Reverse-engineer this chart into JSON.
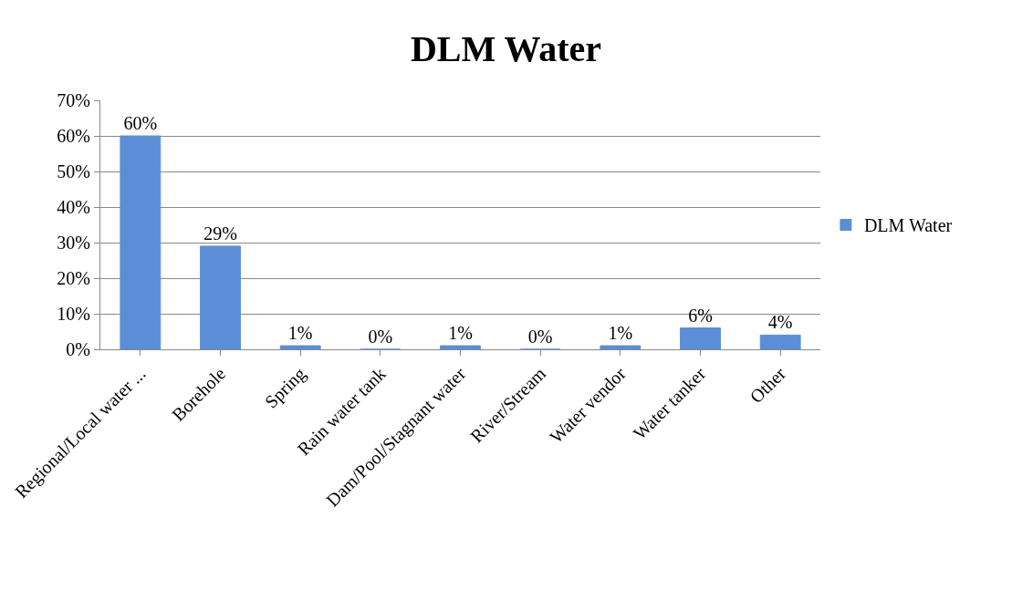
{
  "chart_data": {
    "type": "bar",
    "title": "DLM Water",
    "categories": [
      "Regional/Local water ...",
      "Borehole",
      "Spring",
      "Rain water tank",
      "Dam/Pool/Stagnant water",
      "River/Stream",
      "Water vendor",
      "Water tanker",
      "Other"
    ],
    "series": [
      {
        "name": "DLM Water",
        "color": "#5b8ed6",
        "values": [
          60,
          29,
          1,
          0,
          1,
          0,
          1,
          6,
          4
        ],
        "value_labels": [
          "60%",
          "29%",
          "1%",
          "0%",
          "1%",
          "0%",
          "1%",
          "6%",
          "4%"
        ]
      }
    ],
    "ylim": [
      0,
      70
    ],
    "yticks": [
      {
        "value": 0,
        "label": "0%"
      },
      {
        "value": 10,
        "label": "10%"
      },
      {
        "value": 20,
        "label": "20%"
      },
      {
        "value": 30,
        "label": "30%"
      },
      {
        "value": 40,
        "label": "40%"
      },
      {
        "value": 50,
        "label": "50%"
      },
      {
        "value": 60,
        "label": "60%"
      },
      {
        "value": 70,
        "label": "70%"
      }
    ],
    "grid": "y",
    "legend": "right"
  }
}
